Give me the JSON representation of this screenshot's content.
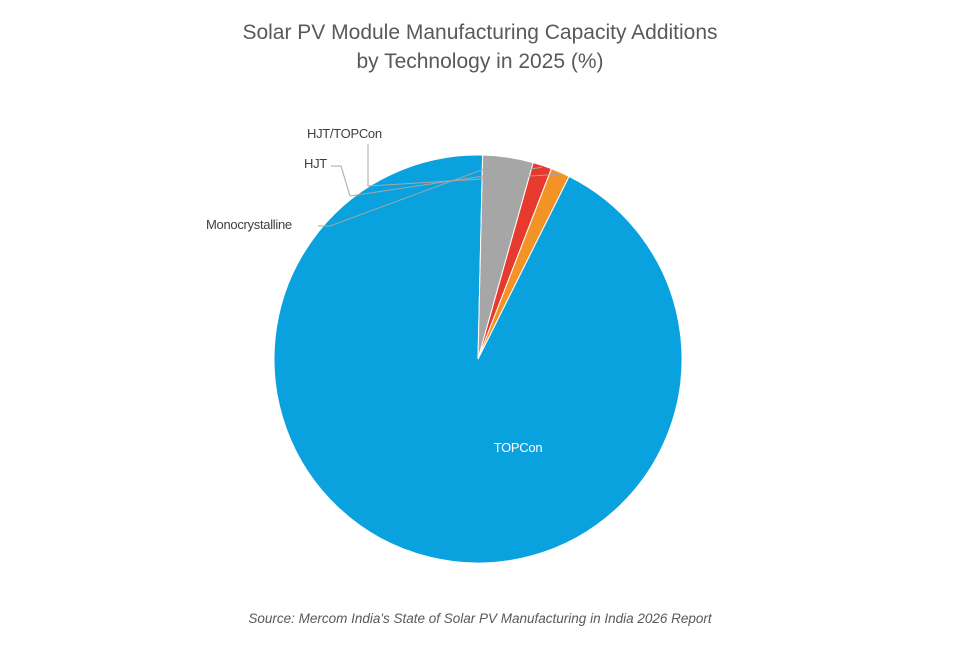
{
  "chart_data": {
    "type": "pie",
    "title": "Solar PV Module Manufacturing Capacity Additions",
    "subtitle": "by Technology in 2025 (%)",
    "series": [
      {
        "name": "TOPCon",
        "value": 93.0,
        "color": "#0aa2de"
      },
      {
        "name": "Monocrystalline",
        "value": 4.0,
        "color": "#a6a6a6"
      },
      {
        "name": "HJT",
        "value": 1.5,
        "color": "#e63a2e"
      },
      {
        "name": "HJT/TOPCon",
        "value": 1.5,
        "color": "#f39325"
      }
    ],
    "legend": "none"
  },
  "source": "Source: Mercom India's State of Solar PV Manufacturing in India 2026 Report"
}
